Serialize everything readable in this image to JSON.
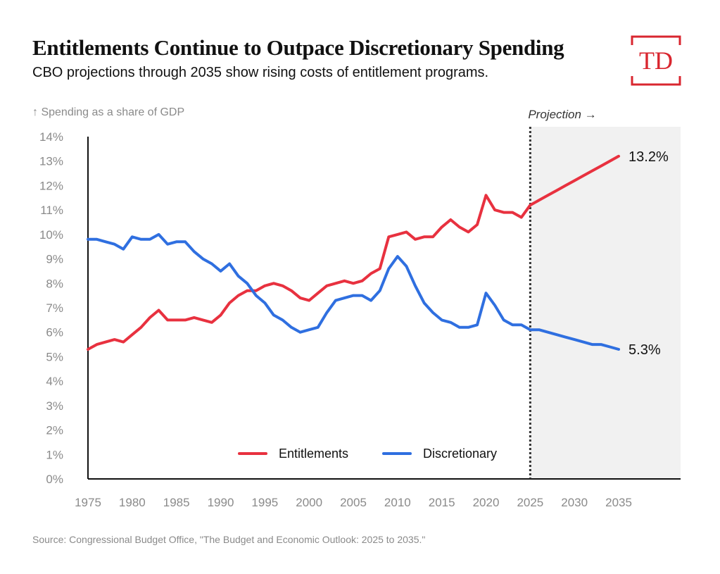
{
  "header": {
    "title": "Entitlements Continue to Outpace Discretionary Spending",
    "subtitle": "CBO projections through 2035 show rising costs of entitlement programs.",
    "logo_text": "TD"
  },
  "footer": {
    "source": "Source: Congressional Budget Office, \"The Budget and Economic Outlook: 2025 to 2035.\""
  },
  "colors": {
    "entitlements": "#e8313f",
    "discretionary": "#2f6fe0",
    "projection_shade": "#f1f1f1",
    "logo": "#d9262f",
    "axis": "#111111",
    "tick_text": "#8a8a8a"
  },
  "chart_data": {
    "type": "line",
    "ylabel": "↑ Spending as a share of GDP",
    "projection_label": "Projection →",
    "projection_start": 2025,
    "xlim": [
      1975,
      2042
    ],
    "ylim": [
      0,
      14
    ],
    "x_ticks": [
      1975,
      1980,
      1985,
      1990,
      1995,
      2000,
      2005,
      2010,
      2015,
      2020,
      2025,
      2030,
      2035
    ],
    "x_tick_labels": [
      "1975",
      "1980",
      "1985",
      "1990",
      "1995",
      "2000",
      "2005",
      "2010",
      "2015",
      "2020",
      "2025",
      "2030",
      "2035"
    ],
    "y_ticks": [
      0,
      1,
      2,
      3,
      4,
      5,
      6,
      7,
      8,
      9,
      10,
      11,
      12,
      13,
      14
    ],
    "y_tick_labels": [
      "0%",
      "1%",
      "2%",
      "3%",
      "4%",
      "5%",
      "6%",
      "7%",
      "8%",
      "9%",
      "10%",
      "11%",
      "12%",
      "13%",
      "14%"
    ],
    "grid": false,
    "legend_position": "bottom-center",
    "x": [
      1975,
      1976,
      1977,
      1978,
      1979,
      1980,
      1981,
      1982,
      1983,
      1984,
      1985,
      1986,
      1987,
      1988,
      1989,
      1990,
      1991,
      1992,
      1993,
      1994,
      1995,
      1996,
      1997,
      1998,
      1999,
      2000,
      2001,
      2002,
      2003,
      2004,
      2005,
      2006,
      2007,
      2008,
      2009,
      2010,
      2011,
      2012,
      2013,
      2014,
      2015,
      2016,
      2017,
      2018,
      2019,
      2020,
      2021,
      2022,
      2023,
      2024,
      2025,
      2026,
      2027,
      2028,
      2029,
      2030,
      2031,
      2032,
      2033,
      2034,
      2035
    ],
    "series": [
      {
        "name": "Entitlements",
        "end_label": "13.2%",
        "values": [
          5.3,
          5.5,
          5.6,
          5.7,
          5.6,
          5.9,
          6.2,
          6.6,
          6.9,
          6.5,
          6.5,
          6.5,
          6.6,
          6.5,
          6.4,
          6.7,
          7.2,
          7.5,
          7.7,
          7.7,
          7.9,
          8.0,
          7.9,
          7.7,
          7.4,
          7.3,
          7.6,
          7.9,
          8.0,
          8.1,
          8.0,
          8.1,
          8.4,
          8.6,
          9.9,
          10.0,
          10.1,
          9.8,
          9.9,
          9.9,
          10.3,
          10.6,
          10.3,
          10.1,
          10.4,
          11.6,
          11.0,
          10.9,
          10.9,
          10.7,
          11.2,
          11.4,
          11.6,
          11.8,
          12.0,
          12.2,
          12.4,
          12.6,
          12.8,
          13.0,
          13.2
        ]
      },
      {
        "name": "Discretionary",
        "end_label": "5.3%",
        "values": [
          9.8,
          9.8,
          9.7,
          9.6,
          9.4,
          9.9,
          9.8,
          9.8,
          10.0,
          9.6,
          9.7,
          9.7,
          9.3,
          9.0,
          8.8,
          8.5,
          8.8,
          8.3,
          8.0,
          7.5,
          7.2,
          6.7,
          6.5,
          6.2,
          6.0,
          6.1,
          6.2,
          6.8,
          7.3,
          7.4,
          7.5,
          7.5,
          7.3,
          7.7,
          8.6,
          9.1,
          8.7,
          7.9,
          7.2,
          6.8,
          6.5,
          6.4,
          6.2,
          6.2,
          6.3,
          7.6,
          7.1,
          6.5,
          6.3,
          6.3,
          6.1,
          6.1,
          6.0,
          5.9,
          5.8,
          5.7,
          5.6,
          5.5,
          5.5,
          5.4,
          5.3
        ]
      }
    ]
  }
}
